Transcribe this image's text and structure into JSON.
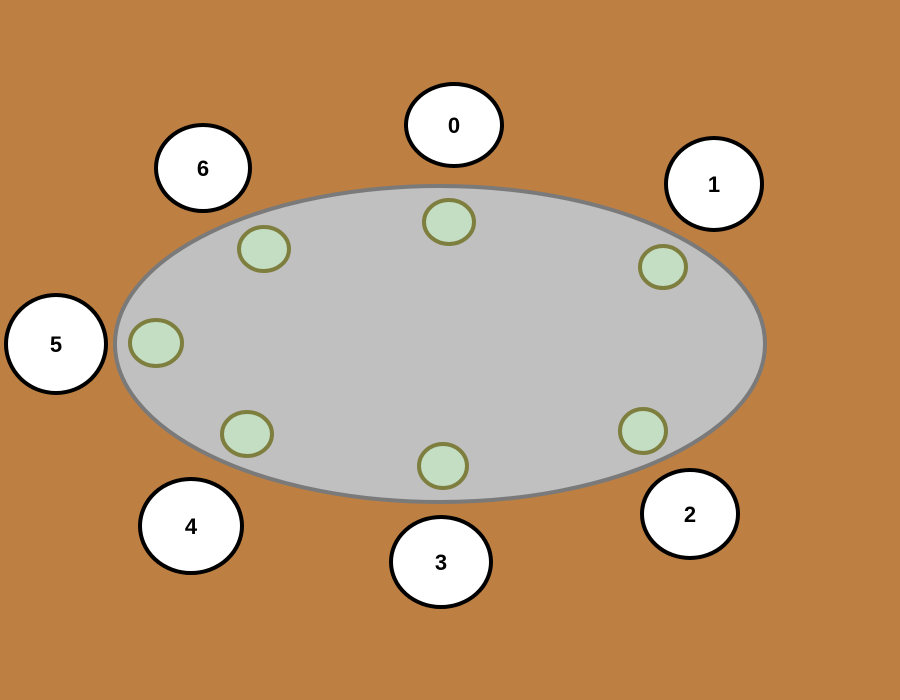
{
  "colors": {
    "floor": "#BE7F42",
    "table_fill": "#C0C0C0",
    "table_stroke": "#7A7A7A",
    "plate_fill": "#C3DEC3",
    "plate_stroke": "#7E7E3E",
    "seat_fill": "#FFFFFF",
    "seat_stroke": "#000000"
  },
  "table": {
    "shape": "ellipse",
    "plate_count": 7
  },
  "seats": [
    {
      "label": "0"
    },
    {
      "label": "1"
    },
    {
      "label": "2"
    },
    {
      "label": "3"
    },
    {
      "label": "4"
    },
    {
      "label": "5"
    },
    {
      "label": "6"
    }
  ]
}
